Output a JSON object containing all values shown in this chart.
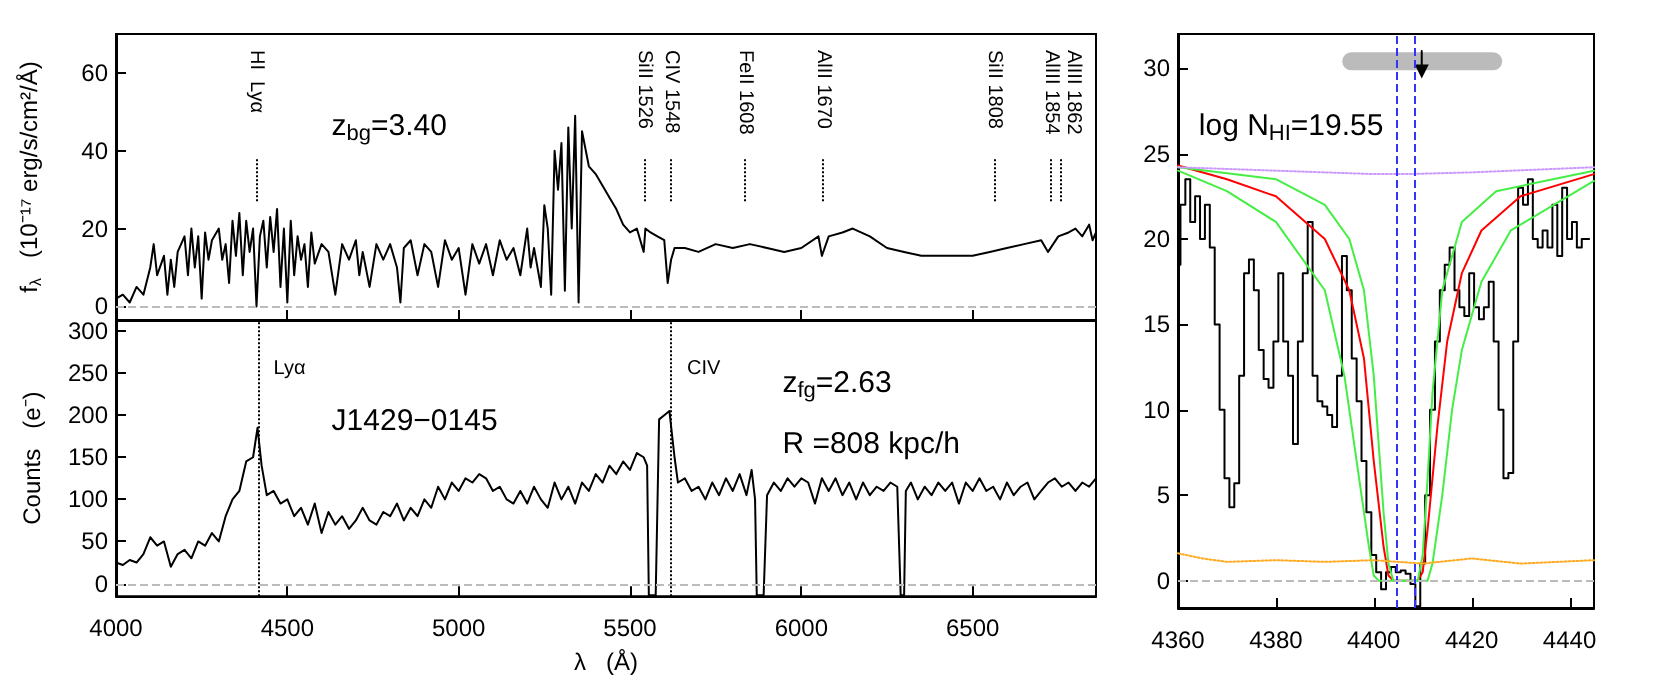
{
  "chart_data": [
    {
      "type": "line",
      "ylabel": "f$_{λ}$   (10⁻¹⁷ erg/s/cm²/Å)",
      "xlim": [
        4000,
        6860
      ],
      "xticks": [
        4000,
        4500,
        5000,
        5500,
        6000,
        6500
      ],
      "ylim": [
        -3.5,
        70
      ],
      "yticks": [
        0,
        20,
        40,
        60
      ],
      "tick_labels": "y",
      "annotations": [
        "z$_{bg}$=3.40"
      ],
      "ref_lines": [
        {
          "axis": "x",
          "value": 4410,
          "label": "HI  Lyα",
          "line_style": "dotted",
          "color": "#000000"
        },
        {
          "axis": "x",
          "value": 5540,
          "label": "SiII 1526",
          "line_style": "dotted",
          "color": "#000000"
        },
        {
          "axis": "x",
          "value": 5620,
          "label": "CIV 1548",
          "line_style": "dotted",
          "color": "#000000"
        },
        {
          "axis": "x",
          "value": 5837,
          "label": "FeII 1608",
          "line_style": "dotted",
          "color": "#000000"
        },
        {
          "axis": "x",
          "value": 6062,
          "label": "AlII 1670",
          "line_style": "dotted",
          "color": "#000000"
        },
        {
          "axis": "x",
          "value": 6563,
          "label": "SiII 1808",
          "line_style": "dotted",
          "color": "#000000"
        },
        {
          "axis": "x",
          "value": 6730,
          "label": "AlIII 1854",
          "line_style": "dotted",
          "color": "#000000"
        },
        {
          "axis": "x",
          "value": 6759,
          "label": "AlIII 1862",
          "line_style": "dotted",
          "color": "#000000"
        },
        {
          "axis": "y",
          "value": 0,
          "line_style": "dashed",
          "color": "#bbbbbb"
        }
      ],
      "series": [
        {
          "color": "#000000",
          "x": [
            4000,
            4020,
            4040,
            4060,
            4080,
            4100,
            4110,
            4120,
            4140,
            4150,
            4160,
            4170,
            4180,
            4200,
            4210,
            4220,
            4230,
            4240,
            4250,
            4260,
            4270,
            4280,
            4300,
            4310,
            4320,
            4330,
            4340,
            4350,
            4360,
            4370,
            4380,
            4390,
            4400,
            4410,
            4420,
            4430,
            4440,
            4450,
            4460,
            4470,
            4480,
            4490,
            4500,
            4510,
            4520,
            4530,
            4540,
            4550,
            4560,
            4570,
            4580,
            4600,
            4620,
            4640,
            4660,
            4680,
            4700,
            4710,
            4720,
            4740,
            4760,
            4780,
            4800,
            4820,
            4830,
            4840,
            4860,
            4880,
            4900,
            4920,
            4940,
            4960,
            4980,
            5000,
            5020,
            5040,
            5060,
            5080,
            5100,
            5120,
            5140,
            5160,
            5180,
            5200,
            5210,
            5220,
            5240,
            5250,
            5260,
            5270,
            5280,
            5290,
            5300,
            5310,
            5320,
            5330,
            5340,
            5350,
            5360,
            5380,
            5400,
            5420,
            5440,
            5460,
            5480,
            5500,
            5520,
            5540,
            5545,
            5560,
            5580,
            5600,
            5610,
            5620,
            5630,
            5660,
            5700,
            5750,
            5800,
            5850,
            5900,
            5950,
            6000,
            6050,
            6060,
            6080,
            6120,
            6150,
            6200,
            6250,
            6300,
            6350,
            6400,
            6450,
            6500,
            6550,
            6600,
            6650,
            6700,
            6720,
            6750,
            6780,
            6800,
            6820,
            6840,
            6850,
            6860
          ],
          "values": [
            2,
            3,
            1,
            5,
            3,
            10,
            16,
            8,
            13,
            3,
            12,
            5,
            14,
            18,
            8,
            20,
            10,
            18,
            2,
            19,
            12,
            17,
            20,
            12,
            16,
            6,
            22,
            13,
            24,
            8,
            22,
            14,
            20,
            0,
            18,
            22,
            10,
            23,
            14,
            25,
            5,
            20,
            1,
            22,
            8,
            18,
            12,
            16,
            5,
            19,
            11,
            16,
            14,
            3,
            16,
            12,
            17,
            8,
            14,
            5,
            16,
            12,
            16,
            10,
            1,
            15,
            17,
            8,
            16,
            14,
            5,
            17,
            12,
            15,
            3,
            16,
            11,
            16,
            8,
            17,
            12,
            15,
            8,
            20,
            10,
            15,
            5,
            26,
            20,
            3,
            40,
            30,
            42,
            4,
            46,
            20,
            49,
            1,
            45,
            36,
            34,
            31,
            28,
            25,
            21,
            19,
            20,
            14,
            20,
            19,
            18,
            17,
            6,
            12,
            15,
            15,
            14,
            16,
            15,
            16,
            15,
            14,
            15,
            18,
            13,
            18,
            19,
            20,
            18,
            15,
            14,
            13,
            13,
            13,
            13,
            14,
            15,
            16,
            17,
            14,
            18,
            19,
            20,
            18,
            21,
            17,
            19
          ]
        }
      ]
    },
    {
      "type": "line",
      "xlabel": "λ   (Å)",
      "ylabel": "Counts   (e⁻)",
      "xlim": [
        4000,
        6860
      ],
      "xticks": [
        4000,
        4500,
        5000,
        5500,
        6000,
        6500
      ],
      "ylim": [
        -15,
        313
      ],
      "yticks": [
        0,
        50,
        100,
        150,
        200,
        250,
        300
      ],
      "annotations": [
        "J1429−0145",
        "z$_{fg}$=2.63",
        "R =808 kpc/h"
      ],
      "ref_lines": [
        {
          "axis": "x",
          "value": 4413,
          "label": "Lyα",
          "line_style": "dotted",
          "color": "#000000"
        },
        {
          "axis": "x",
          "value": 5620,
          "label": "CIV",
          "line_style": "dotted",
          "color": "#000000"
        },
        {
          "axis": "y",
          "value": 0,
          "line_style": "dashed",
          "color": "#bbbbbb"
        }
      ],
      "series": [
        {
          "color": "#000000",
          "x": [
            4000,
            4020,
            4040,
            4060,
            4080,
            4100,
            4120,
            4140,
            4160,
            4180,
            4200,
            4220,
            4240,
            4260,
            4280,
            4300,
            4320,
            4340,
            4360,
            4380,
            4400,
            4413,
            4425,
            4440,
            4460,
            4480,
            4500,
            4520,
            4540,
            4560,
            4580,
            4600,
            4620,
            4640,
            4660,
            4680,
            4700,
            4720,
            4740,
            4760,
            4780,
            4800,
            4820,
            4840,
            4860,
            4880,
            4900,
            4920,
            4940,
            4960,
            4980,
            5000,
            5020,
            5040,
            5060,
            5080,
            5100,
            5120,
            5140,
            5160,
            5180,
            5200,
            5220,
            5240,
            5260,
            5280,
            5300,
            5320,
            5340,
            5360,
            5380,
            5400,
            5420,
            5440,
            5460,
            5480,
            5500,
            5520,
            5540,
            5550,
            5555,
            5575,
            5585,
            5600,
            5615,
            5630,
            5640,
            5660,
            5680,
            5700,
            5720,
            5740,
            5760,
            5780,
            5800,
            5820,
            5840,
            5855,
            5865,
            5870,
            5890,
            5900,
            5920,
            5940,
            5960,
            5980,
            6000,
            6020,
            6040,
            6060,
            6080,
            6100,
            6120,
            6140,
            6160,
            6180,
            6200,
            6220,
            6240,
            6260,
            6280,
            6290,
            6300,
            6305,
            6320,
            6340,
            6360,
            6380,
            6400,
            6420,
            6440,
            6460,
            6480,
            6500,
            6520,
            6540,
            6560,
            6580,
            6600,
            6620,
            6640,
            6660,
            6680,
            6700,
            6720,
            6740,
            6760,
            6780,
            6800,
            6820,
            6840,
            6860
          ],
          "values": [
            25,
            22,
            28,
            25,
            35,
            55,
            45,
            50,
            20,
            35,
            40,
            30,
            50,
            45,
            60,
            50,
            80,
            100,
            110,
            145,
            150,
            185,
            140,
            105,
            110,
            95,
            100,
            80,
            90,
            70,
            95,
            60,
            85,
            70,
            80,
            65,
            75,
            90,
            75,
            70,
            85,
            80,
            95,
            75,
            90,
            80,
            100,
            90,
            115,
            100,
            120,
            110,
            125,
            120,
            130,
            125,
            110,
            115,
            100,
            95,
            110,
            95,
            115,
            100,
            90,
            120,
            100,
            115,
            95,
            120,
            110,
            130,
            120,
            140,
            130,
            145,
            135,
            155,
            150,
            140,
            -14,
            -14,
            195,
            200,
            205,
            150,
            120,
            125,
            110,
            115,
            100,
            120,
            105,
            125,
            110,
            130,
            105,
            135,
            100,
            -14,
            -14,
            105,
            120,
            110,
            125,
            115,
            125,
            120,
            95,
            125,
            110,
            125,
            105,
            120,
            100,
            120,
            105,
            115,
            110,
            120,
            115,
            -14,
            -14,
            110,
            120,
            100,
            115,
            105,
            120,
            110,
            120,
            95,
            120,
            110,
            125,
            110,
            115,
            100,
            120,
            105,
            115,
            120,
            100,
            110,
            120,
            125,
            115,
            120,
            110,
            120,
            115,
            125
          ]
        }
      ]
    },
    {
      "type": "line",
      "xlim": [
        4360,
        4445
      ],
      "xticks": [
        4360,
        4380,
        4400,
        4420,
        4440
      ],
      "ylim": [
        -1.6,
        32
      ],
      "yticks": [
        0,
        5,
        10,
        15,
        20,
        25,
        30
      ],
      "annotations": [
        "log N$_{HI}$=19.55"
      ],
      "ref_lines": [
        {
          "axis": "x",
          "value": 4404.6,
          "line_style": "dashed",
          "color": "#3333ff"
        },
        {
          "axis": "x",
          "value": 4408.4,
          "line_style": "dashed",
          "color": "#3333ff"
        },
        {
          "axis": "y",
          "value": 0,
          "line_style": "dashed",
          "color": "#bbbbbb"
        }
      ],
      "series": [
        {
          "color": "#bbbbbb",
          "x": [
            4395.4,
            4424.4
          ],
          "values": [
            30.4,
            30.4
          ]
        },
        {
          "type": "step",
          "color": "#000000",
          "x": [
            4360,
            4361,
            4362,
            4363,
            4364,
            4365,
            4366,
            4367,
            4368,
            4369,
            4370,
            4371,
            4372,
            4373,
            4374,
            4375,
            4376,
            4377,
            4378,
            4379,
            4380,
            4381,
            4382,
            4383,
            4384,
            4385,
            4386,
            4387,
            4388,
            4389,
            4390,
            4391,
            4392,
            4393,
            4394,
            4395,
            4396,
            4397,
            4398,
            4399,
            4400,
            4401,
            4402,
            4403,
            4404,
            4405,
            4406,
            4407,
            4408,
            4409,
            4410,
            4411,
            4412,
            4413,
            4414,
            4415,
            4416,
            4417,
            4418,
            4419,
            4420,
            4421,
            4422,
            4423,
            4424,
            4425,
            4426,
            4427,
            4428,
            4429,
            4430,
            4431,
            4432,
            4433,
            4434,
            4435,
            4436,
            4437,
            4438,
            4439,
            4440,
            4441,
            4442,
            4443,
            4444
          ],
          "values": [
            18.5,
            22,
            23.5,
            21,
            22.5,
            20,
            22,
            19.5,
            15,
            10,
            6,
            4.3,
            5.7,
            12,
            18,
            18.8,
            17,
            13.5,
            11.8,
            11.3,
            14,
            18,
            14,
            12,
            8,
            14,
            18,
            21,
            12,
            10.5,
            10.2,
            9.7,
            9,
            12,
            19,
            17,
            13,
            10.5,
            7,
            4,
            1.5,
            0.5,
            -0.5,
            0.5,
            0.8,
            0.5,
            0.6,
            0.4,
            -0.2,
            -1.5,
            1,
            5,
            10,
            14,
            17,
            18.5,
            19.5,
            17,
            16,
            15.5,
            18,
            16,
            15.3,
            16,
            17.5,
            14,
            10,
            6,
            6.3,
            14,
            23,
            22,
            23.5,
            20,
            19.5,
            20.5,
            19.5,
            22,
            19,
            23,
            20,
            21,
            19.5,
            20,
            20
          ]
        },
        {
          "color": "#ff0000",
          "x": [
            4360,
            4370,
            4380,
            4390,
            4395,
            4398,
            4400,
            4402,
            4403,
            4404,
            4409,
            4410,
            4411,
            4413,
            4415,
            4418,
            4422,
            4430,
            4445
          ],
          "values": [
            24.3,
            23.5,
            22.5,
            20,
            17,
            13,
            7,
            2,
            0.3,
            0,
            0,
            0.5,
            3,
            9,
            14,
            18,
            20.5,
            22.5,
            23.8
          ]
        },
        {
          "color": "#44ee44",
          "x": [
            4360,
            4380,
            4390,
            4395,
            4398,
            4400,
            4401,
            4402,
            4403,
            4404,
            4409,
            4410,
            4411,
            4412,
            4414,
            4418,
            4425,
            4445
          ],
          "values": [
            24.2,
            23.5,
            22,
            20,
            17,
            12,
            8,
            4,
            1,
            0,
            0,
            1.5,
            6,
            11,
            17,
            21,
            22.8,
            24
          ]
        },
        {
          "color": "#44ee44",
          "x": [
            4360,
            4370,
            4380,
            4390,
            4394,
            4397,
            4399,
            4400,
            4401,
            4411,
            4412,
            4414,
            4416,
            4418,
            4422,
            4428,
            4445
          ],
          "values": [
            24,
            22.8,
            21,
            17,
            12,
            6,
            2,
            0.3,
            0,
            0,
            1,
            5,
            10,
            13.5,
            17.5,
            20.5,
            23.4
          ]
        },
        {
          "color": "#cc99ff",
          "line_style": "dotted",
          "x": [
            4360,
            4380,
            4400,
            4407,
            4420,
            4445
          ],
          "values": [
            24.2,
            24,
            23.8,
            23.8,
            23.9,
            24.2
          ]
        },
        {
          "color": "#ffaa22",
          "line_style": "dotted",
          "x": [
            4360,
            4365,
            4370,
            4380,
            4390,
            4400,
            4410,
            4420,
            4430,
            4445
          ],
          "values": [
            1.6,
            1.3,
            1.1,
            1.2,
            1.1,
            1.2,
            1,
            1.3,
            1,
            1.2
          ]
        },
        {
          "color": "#000000",
          "marker": "triangle",
          "x": [
            4409.8,
            4409.8
          ],
          "values": [
            31,
            29.8
          ]
        }
      ]
    }
  ]
}
